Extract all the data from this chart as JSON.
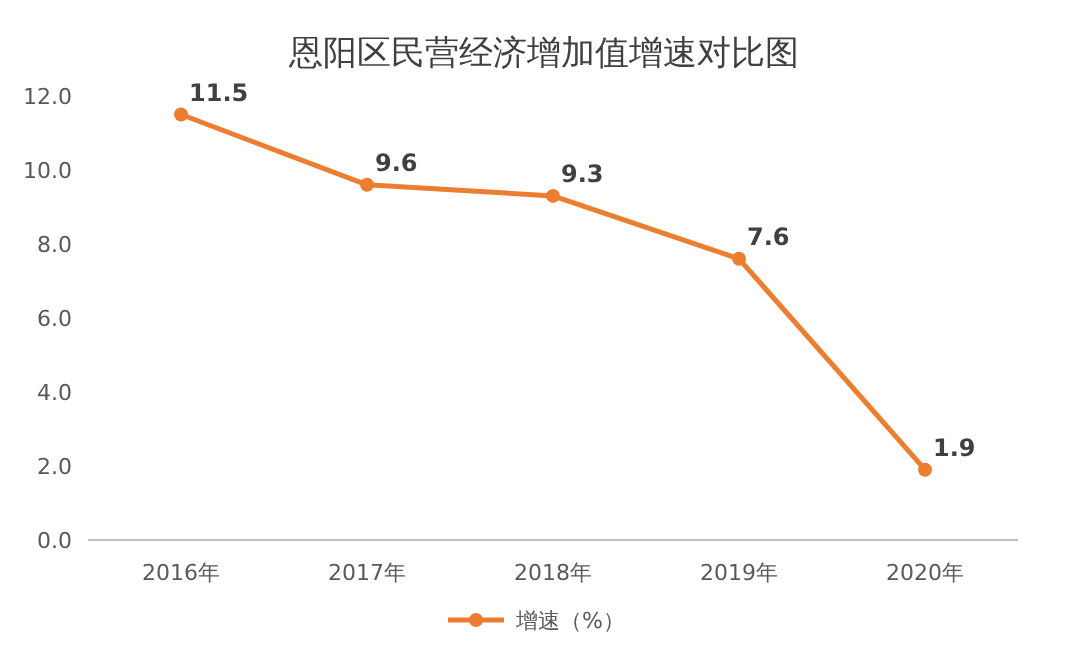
{
  "chart_data": {
    "type": "line",
    "title": "恩阳区民营经济增加值增速对比图",
    "categories": [
      "2016年",
      "2017年",
      "2018年",
      "2019年",
      "2020年"
    ],
    "series": [
      {
        "name": "增速（%）",
        "color": "#ed7d31",
        "values": [
          11.5,
          9.6,
          9.3,
          7.6,
          1.9
        ]
      }
    ],
    "ylim": [
      0,
      12
    ],
    "yticks": [
      {
        "value": 0,
        "label": "0.0"
      },
      {
        "value": 2,
        "label": "2.0"
      },
      {
        "value": 4,
        "label": "4.0"
      },
      {
        "value": 6,
        "label": "6.0"
      },
      {
        "value": 8,
        "label": "8.0"
      },
      {
        "value": 10,
        "label": "10.0"
      },
      {
        "value": 12,
        "label": "12.0"
      }
    ],
    "grid": false,
    "legend": "bottom",
    "marker": "circle",
    "line_style": "solid",
    "data_labels": true
  }
}
